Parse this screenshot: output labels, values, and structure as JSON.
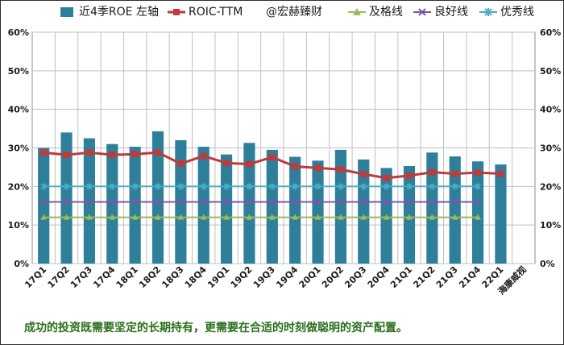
{
  "chart_data": {
    "type": "bar",
    "categories": [
      "17Q1",
      "17Q2",
      "17Q3",
      "17Q4",
      "18Q1",
      "18Q2",
      "18Q3",
      "18Q4",
      "19Q1",
      "19Q2",
      "19Q3",
      "19Q4",
      "20Q1",
      "20Q2",
      "20Q3",
      "20Q4",
      "21Q1",
      "21Q2",
      "21Q3",
      "21Q4",
      "22Q1",
      "海康威视"
    ],
    "series": [
      {
        "name": "近4季ROE 左轴",
        "kind": "bar",
        "color": "#2e7f9a",
        "values": [
          30,
          34,
          32.5,
          31,
          30.3,
          34.3,
          32,
          30.3,
          28.3,
          31.3,
          29.5,
          27.7,
          26.7,
          29.5,
          27,
          24.8,
          25.3,
          28.8,
          27.8,
          26.5,
          25.7,
          null
        ]
      },
      {
        "name": "ROIC-TTM",
        "kind": "line",
        "color": "#c0393b",
        "marker": "square",
        "values": [
          28.8,
          28.2,
          28.8,
          28.2,
          28.4,
          28.8,
          25.9,
          27.9,
          26.1,
          25.8,
          27.6,
          25.2,
          24.8,
          24.4,
          23.2,
          22.2,
          22.8,
          23.7,
          23.3,
          23.6,
          23.3,
          null
        ]
      },
      {
        "name": "@宏赫臻财",
        "kind": "label",
        "color": "#ffffff"
      },
      {
        "name": "及格线",
        "kind": "line",
        "color": "#9bbb59",
        "marker": "triangle",
        "values": [
          12,
          12,
          12,
          12,
          12,
          12,
          12,
          12,
          12,
          12,
          12,
          12,
          12,
          12,
          12,
          12,
          12,
          12,
          12,
          12,
          null,
          null
        ]
      },
      {
        "name": "良好线",
        "kind": "line",
        "color": "#7b57a7",
        "marker": "x",
        "values": [
          16,
          16,
          16,
          16,
          16,
          16,
          16,
          16,
          16,
          16,
          16,
          16,
          16,
          16,
          16,
          16,
          16,
          16,
          16,
          16,
          null,
          null
        ]
      },
      {
        "name": "优秀线",
        "kind": "line",
        "color": "#4bacc6",
        "marker": "star",
        "values": [
          20,
          20,
          20,
          20,
          20,
          20,
          20,
          20,
          20,
          20,
          20,
          20,
          20,
          20,
          20,
          20,
          20,
          20,
          20,
          20,
          null,
          null
        ]
      }
    ],
    "ylim": [
      0,
      60
    ],
    "yticks": [
      "0%",
      "10%",
      "20%",
      "30%",
      "40%",
      "50%",
      "60%"
    ],
    "y2ticks": [
      "0%",
      "10%",
      "20%",
      "30%",
      "40%",
      "50%",
      "60%"
    ],
    "grid": true,
    "legend": "top"
  },
  "footer": {
    "note": "成功的投资既需要坚定的长期持有，更需要在合适的时刻做聪明的资产配置。"
  }
}
